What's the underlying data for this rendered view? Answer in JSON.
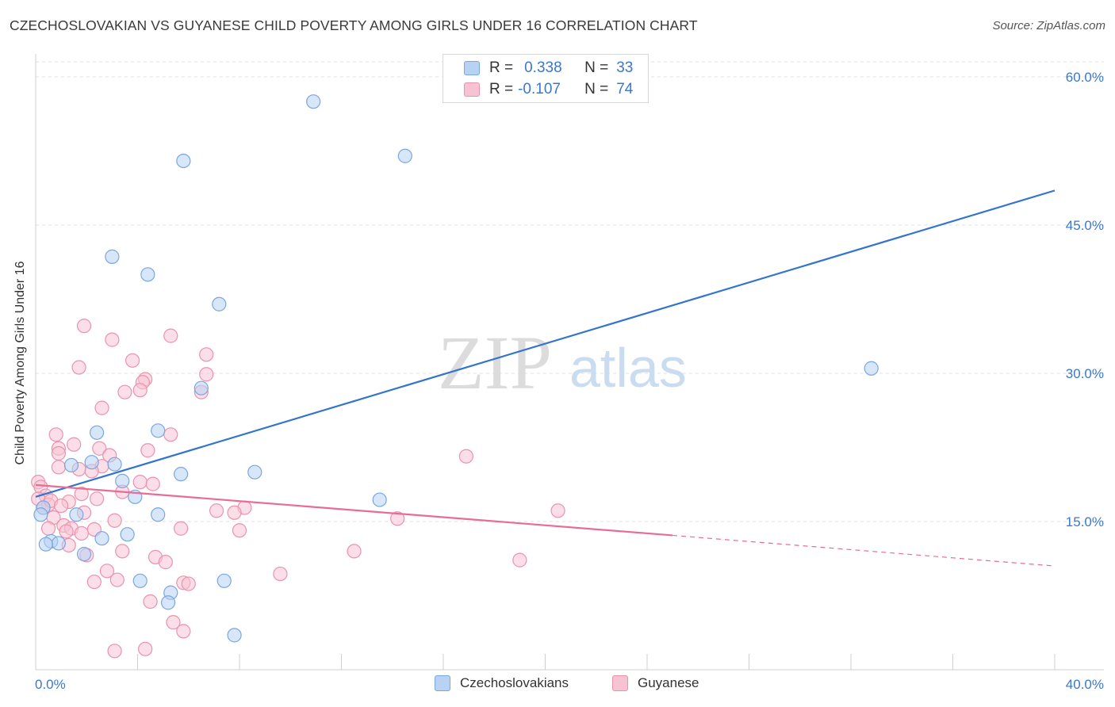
{
  "title": "CZECHOSLOVAKIAN VS GUYANESE CHILD POVERTY AMONG GIRLS UNDER 16 CORRELATION CHART",
  "source": "Source: ZipAtlas.com",
  "watermark": {
    "zip": "ZIP",
    "atlas": "atlas"
  },
  "legend_top": {
    "rows": [
      {
        "r_label": "R =",
        "r_value": "0.338",
        "n_label": "N =",
        "n_value": "33"
      },
      {
        "r_label": "R =",
        "r_value": "-0.107",
        "n_label": "N =",
        "n_value": "74"
      }
    ]
  },
  "colors": {
    "blue_fill": "#b7d2f3",
    "blue_stroke": "#7aa7df",
    "blue_line": "#3474cc",
    "pink_fill": "#f7c3d3",
    "pink_stroke": "#ea93ae",
    "pink_line": "#e86c93",
    "grid": "#e2e2e2",
    "axis_text": "#3a78c9"
  },
  "chart_data": {
    "type": "scatter",
    "title": "CZECHOSLOVAKIAN VS GUYANESE CHILD POVERTY AMONG GIRLS UNDER 16 CORRELATION CHART",
    "xlabel": "",
    "ylabel": "Child Poverty Among Girls Under 16",
    "xlim": [
      0,
      40
    ],
    "ylim": [
      0,
      60
    ],
    "x_tick_labels": [
      "0.0%",
      "40.0%"
    ],
    "y_ticks": [
      15,
      30,
      45,
      60
    ],
    "y_tick_labels": [
      "15.0%",
      "30.0%",
      "45.0%",
      "60.0%"
    ],
    "grid": true,
    "legend_placement": "bottom",
    "series": [
      {
        "name": "Czechoslovakians",
        "color": "#b7d2f3",
        "r": 0.338,
        "n": 33,
        "trend": {
          "x": [
            0,
            40
          ],
          "y": [
            17.5,
            48.5
          ],
          "style": "solid"
        },
        "points": [
          [
            10.9,
            57.5
          ],
          [
            14.5,
            52
          ],
          [
            5.8,
            51.5
          ],
          [
            3,
            41.8
          ],
          [
            4.4,
            40
          ],
          [
            7.2,
            37
          ],
          [
            32.8,
            30.5
          ],
          [
            6.5,
            28.5
          ],
          [
            2.4,
            24
          ],
          [
            4.8,
            24.2
          ],
          [
            2.2,
            21
          ],
          [
            3.1,
            20.8
          ],
          [
            1.4,
            20.7
          ],
          [
            8.6,
            20
          ],
          [
            5.7,
            19.8
          ],
          [
            3.4,
            19.1
          ],
          [
            3.9,
            17.5
          ],
          [
            13.5,
            17.2
          ],
          [
            0.3,
            16.4
          ],
          [
            0.2,
            15.7
          ],
          [
            1.6,
            15.7
          ],
          [
            4.8,
            15.7
          ],
          [
            2.6,
            13.3
          ],
          [
            3.6,
            13.7
          ],
          [
            0.6,
            13
          ],
          [
            0.9,
            12.8
          ],
          [
            0.4,
            12.7
          ],
          [
            1.9,
            11.7
          ],
          [
            4.1,
            9
          ],
          [
            7.4,
            9
          ],
          [
            5.3,
            7.8
          ],
          [
            5.2,
            6.8
          ],
          [
            7.8,
            3.5
          ]
        ]
      },
      {
        "name": "Guyanese",
        "color": "#f7c3d3",
        "r": -0.107,
        "n": 74,
        "trend": {
          "x": [
            0,
            25,
            40
          ],
          "y": [
            18.7,
            13.6,
            10.5
          ],
          "style": "solid-then-dashed"
        },
        "points": [
          [
            1.9,
            34.8
          ],
          [
            3,
            33.4
          ],
          [
            5.3,
            33.8
          ],
          [
            6.7,
            31.9
          ],
          [
            3.8,
            31.3
          ],
          [
            1.7,
            30.6
          ],
          [
            6.7,
            29.9
          ],
          [
            4.3,
            29.4
          ],
          [
            4.2,
            29.1
          ],
          [
            4.1,
            28.3
          ],
          [
            3.5,
            28.1
          ],
          [
            6.5,
            28.1
          ],
          [
            2.6,
            26.5
          ],
          [
            0.8,
            23.8
          ],
          [
            5.3,
            23.8
          ],
          [
            1.5,
            22.8
          ],
          [
            0.9,
            22.4
          ],
          [
            2.5,
            22.4
          ],
          [
            4.4,
            22.2
          ],
          [
            0.9,
            21.9
          ],
          [
            2.9,
            21.7
          ],
          [
            16.9,
            21.6
          ],
          [
            0.9,
            20.5
          ],
          [
            1.7,
            20.3
          ],
          [
            2.6,
            20.6
          ],
          [
            2.2,
            20.1
          ],
          [
            0.1,
            19
          ],
          [
            4.1,
            19
          ],
          [
            4.6,
            18.8
          ],
          [
            0.2,
            18.5
          ],
          [
            1.8,
            17.8
          ],
          [
            0.4,
            17.6
          ],
          [
            0.1,
            17.3
          ],
          [
            2.4,
            17.3
          ],
          [
            1.3,
            17
          ],
          [
            3.4,
            18
          ],
          [
            0.5,
            16.7
          ],
          [
            0.3,
            16.4
          ],
          [
            8.2,
            16.4
          ],
          [
            7.1,
            16.1
          ],
          [
            20.5,
            16.1
          ],
          [
            1.9,
            15.9
          ],
          [
            0.7,
            15.4
          ],
          [
            3.1,
            15.1
          ],
          [
            1.1,
            14.6
          ],
          [
            14.2,
            15.3
          ],
          [
            7.8,
            15.9
          ],
          [
            0.5,
            14.3
          ],
          [
            1.4,
            14.3
          ],
          [
            2.3,
            14.2
          ],
          [
            5.7,
            14.3
          ],
          [
            8,
            14.1
          ],
          [
            1.2,
            14
          ],
          [
            1.8,
            13.8
          ],
          [
            1.3,
            12.6
          ],
          [
            3.4,
            12
          ],
          [
            12.5,
            12
          ],
          [
            2,
            11.6
          ],
          [
            4.7,
            11.4
          ],
          [
            5.1,
            10.9
          ],
          [
            19,
            11.1
          ],
          [
            2.8,
            10
          ],
          [
            9.6,
            9.7
          ],
          [
            2.3,
            8.9
          ],
          [
            3.2,
            9.1
          ],
          [
            5.8,
            8.8
          ],
          [
            6,
            8.7
          ],
          [
            4.5,
            6.9
          ],
          [
            5.4,
            4.8
          ],
          [
            5.8,
            3.9
          ],
          [
            3.1,
            1.9
          ],
          [
            4.3,
            2.1
          ],
          [
            0.6,
            17.1
          ],
          [
            1.0,
            16.6
          ]
        ]
      }
    ]
  }
}
